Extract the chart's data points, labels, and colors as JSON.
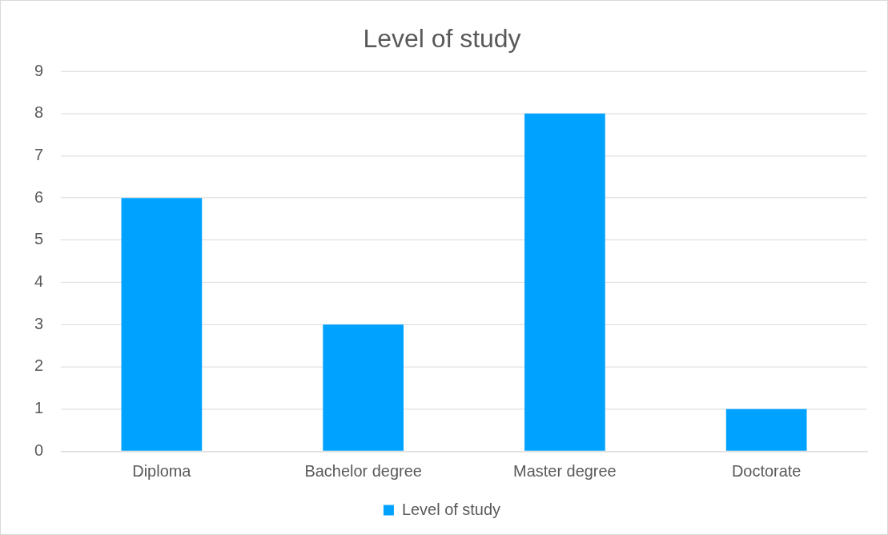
{
  "chart_data": {
    "type": "bar",
    "title": "Level of study",
    "categories": [
      "Diploma",
      "Bachelor degree",
      "Master degree",
      "Doctorate"
    ],
    "series": [
      {
        "name": "Level of study",
        "color": "#00a2ff",
        "values": [
          6,
          3,
          8,
          1
        ]
      }
    ],
    "ylim": [
      0,
      9
    ],
    "yticks": [
      0,
      1,
      2,
      3,
      4,
      5,
      6,
      7,
      8,
      9
    ],
    "grid": "y",
    "legend": "bottom"
  }
}
